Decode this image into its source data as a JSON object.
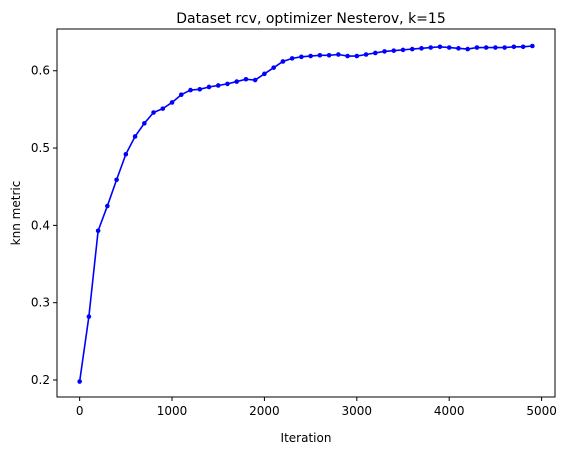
{
  "chart_data": {
    "type": "line",
    "title": "Dataset rcv, optimizer Nesterov, k=15",
    "xlabel": "Iteration",
    "ylabel": "knn metric",
    "xlim": [
      -245,
      5145
    ],
    "ylim": [
      0.178,
      0.654
    ],
    "x_ticks": [
      0,
      1000,
      2000,
      3000,
      4000,
      5000
    ],
    "y_ticks": [
      0.2,
      0.3,
      0.4,
      0.5,
      0.6
    ],
    "y_tick_labels": [
      "0.2",
      "0.3",
      "0.4",
      "0.5",
      "0.6"
    ],
    "grid": false,
    "line_color": "#0000ff",
    "marker": "circle",
    "series": [
      {
        "x": [
          0,
          100,
          200,
          300,
          400,
          500,
          600,
          700,
          800,
          900,
          1000,
          1100,
          1200,
          1300,
          1400,
          1500,
          1600,
          1700,
          1800,
          1900,
          2000,
          2100,
          2200,
          2300,
          2400,
          2500,
          2600,
          2700,
          2800,
          2900,
          3000,
          3100,
          3200,
          3300,
          3400,
          3500,
          3600,
          3700,
          3800,
          3900,
          4000,
          4100,
          4200,
          4300,
          4400,
          4500,
          4600,
          4700,
          4800,
          4900
        ],
        "values": [
          0.198,
          0.282,
          0.393,
          0.425,
          0.459,
          0.492,
          0.515,
          0.532,
          0.546,
          0.551,
          0.559,
          0.569,
          0.575,
          0.576,
          0.579,
          0.581,
          0.583,
          0.586,
          0.589,
          0.588,
          0.596,
          0.604,
          0.612,
          0.616,
          0.618,
          0.619,
          0.62,
          0.62,
          0.621,
          0.619,
          0.619,
          0.621,
          0.623,
          0.625,
          0.626,
          0.627,
          0.628,
          0.629,
          0.63,
          0.631,
          0.63,
          0.629,
          0.628,
          0.63,
          0.63,
          0.63,
          0.63,
          0.631,
          0.631,
          0.632
        ]
      }
    ]
  }
}
